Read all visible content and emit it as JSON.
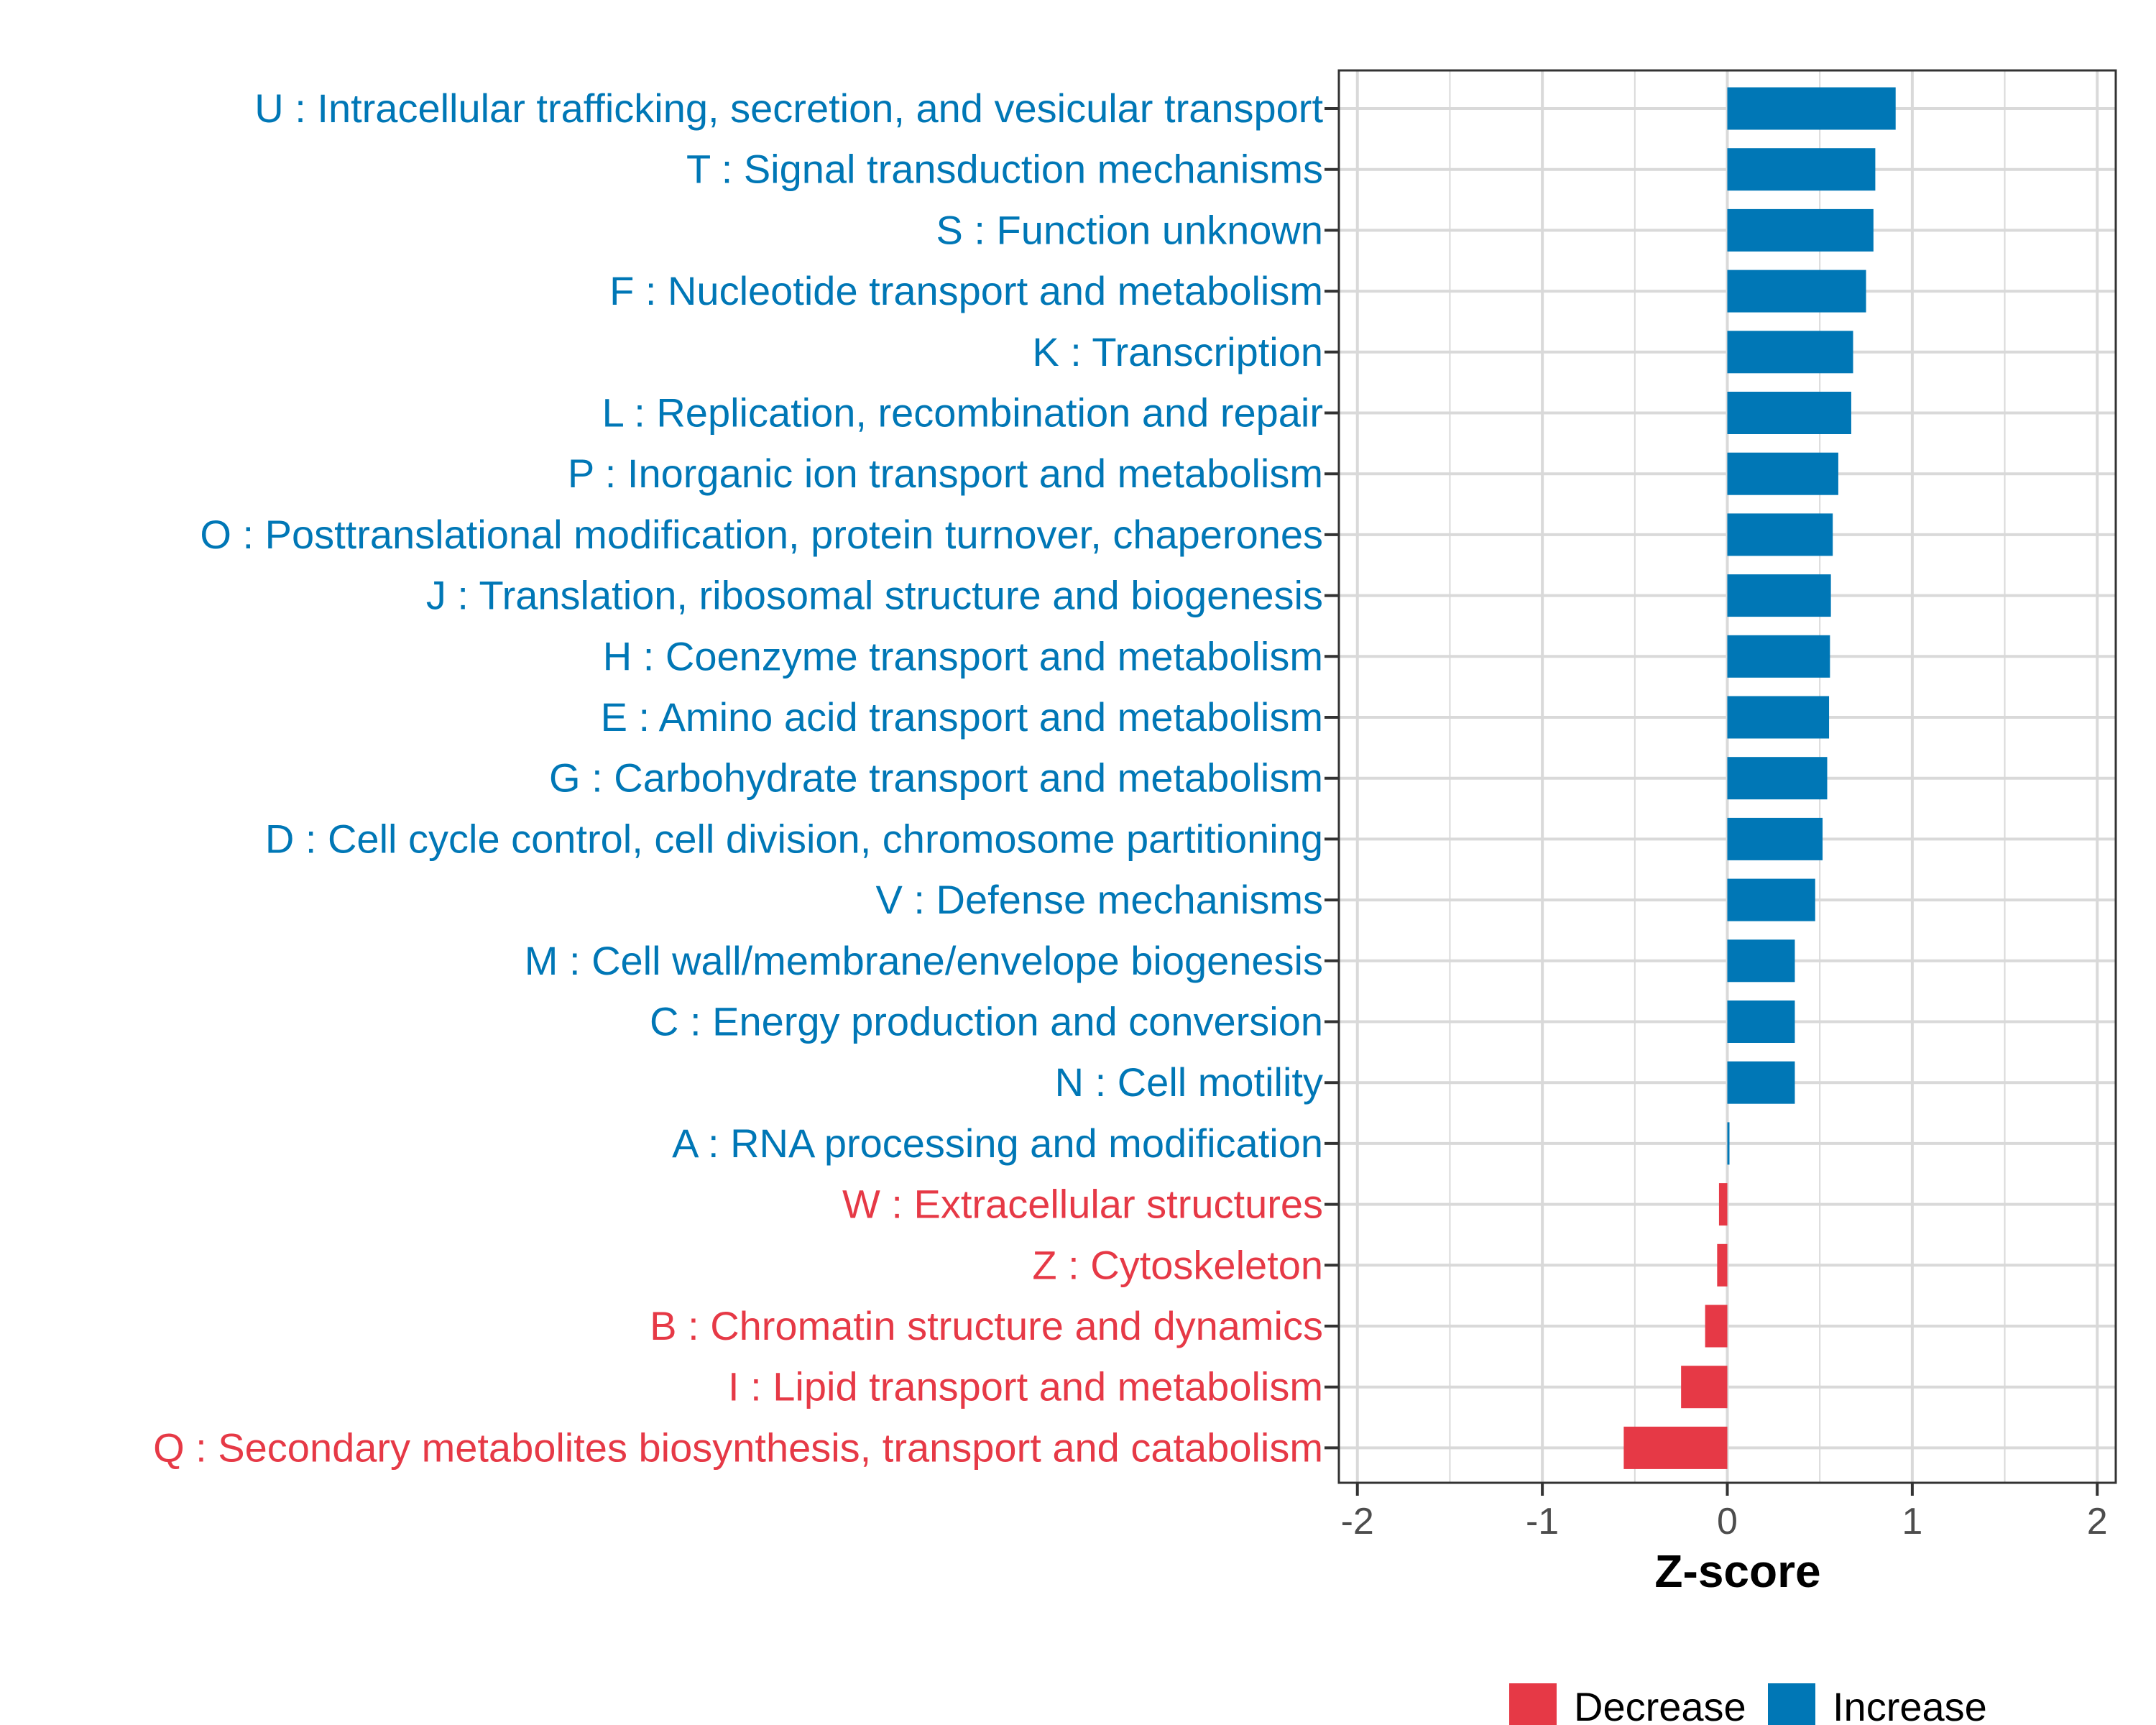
{
  "chart_data": {
    "type": "bar",
    "orientation": "horizontal",
    "title": "",
    "xlabel": "Z-score",
    "ylabel": "",
    "xlim": [
      -2.1,
      2.1
    ],
    "xticks": [
      -2,
      -1,
      0,
      1,
      2
    ],
    "xtick_labels": [
      "-2",
      "-1",
      "0",
      "1",
      "2"
    ],
    "grid": true,
    "legend_position": "bottom-right",
    "categories": [
      "U : Intracellular trafficking, secretion, and vesicular transport",
      "T : Signal transduction mechanisms",
      "S : Function unknown",
      "F : Nucleotide transport and metabolism",
      "K : Transcription",
      "L : Replication, recombination and repair",
      "P : Inorganic ion transport and metabolism",
      "O : Posttranslational modification, protein turnover, chaperones",
      "J : Translation, ribosomal structure and biogenesis",
      "H : Coenzyme transport and metabolism",
      "E : Amino acid transport and metabolism",
      "G : Carbohydrate transport and metabolism",
      "D : Cell cycle control, cell division, chromosome partitioning",
      "V : Defense mechanisms",
      "M : Cell wall/membrane/envelope biogenesis",
      "C : Energy production and conversion",
      "N : Cell motility",
      "A : RNA processing and modification",
      "W : Extracellular structures",
      "Z : Cytoskeleton",
      "B : Chromatin structure and dynamics",
      "I : Lipid transport and metabolism",
      "Q : Secondary metabolites biosynthesis, transport and catabolism"
    ],
    "values": [
      0.91,
      0.8,
      0.79,
      0.75,
      0.68,
      0.67,
      0.6,
      0.57,
      0.56,
      0.555,
      0.55,
      0.54,
      0.515,
      0.475,
      0.365,
      0.365,
      0.365,
      0.01,
      -0.045,
      -0.055,
      -0.12,
      -0.25,
      -0.56
    ],
    "legend": [
      {
        "name": "Decrease",
        "color": "#E63946"
      },
      {
        "name": "Increase",
        "color": "#0077B6"
      }
    ],
    "colors": {
      "increase": "#0077B6",
      "decrease": "#E63946",
      "grid": "#d9d9d9",
      "panel_border": "#333333"
    }
  }
}
